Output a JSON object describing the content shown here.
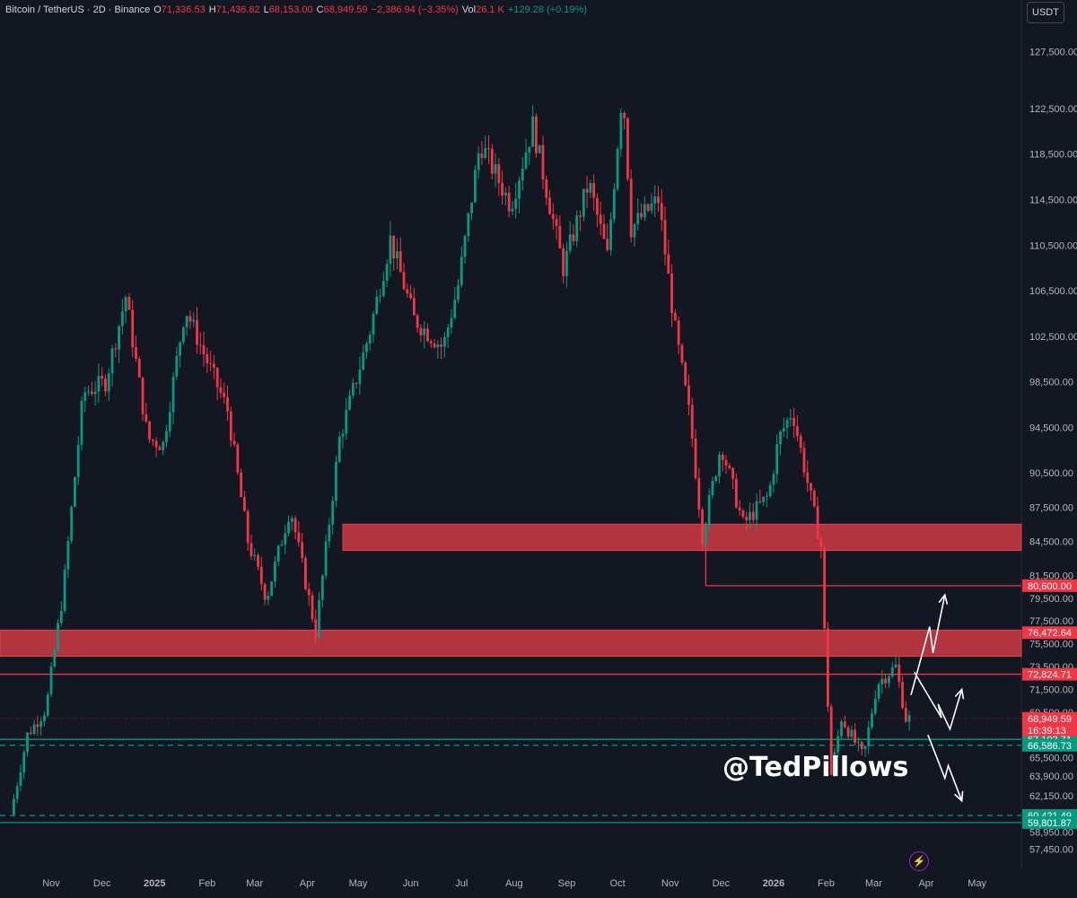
{
  "header": {
    "symbol": "Bitcoin / TetherUS · 2D · Binance",
    "open_label": "O",
    "open": "71,336.53",
    "high_label": "H",
    "high": "71,436.82",
    "low_label": "L",
    "low": "68,153.00",
    "close_label": "C",
    "close": "68,949.59",
    "change": "−2,386.94 (−3.35%)",
    "vol_label": "Vol",
    "vol": "26.1 K",
    "vol_change": "+129.28 (+0.19%)"
  },
  "currency_badge": "USDT",
  "watermark": "@TedPillows",
  "icons": {
    "alert": "lightning-bolt-icon"
  },
  "colors": {
    "background": "#131722",
    "up": "#089981",
    "down": "#f23645",
    "zone": "#b2343f",
    "arrow": "#ffffff",
    "axis_text": "#b2b5be"
  },
  "chart_data": {
    "type": "candlestick",
    "timeframe": "2D",
    "ylim": [
      56800,
      131000
    ],
    "y_ticks": [
      "127,500.00",
      "122,500.00",
      "118,500.00",
      "114,500.00",
      "110,500.00",
      "106,500.00",
      "102,500.00",
      "98,500.00",
      "94,500.00",
      "90,500.00",
      "87,500.00",
      "84,500.00",
      "81,500.00",
      "79,500.00",
      "77,500.00",
      "75,500.00",
      "73,500.00",
      "71,500.00",
      "69,500.00",
      "65,500.00",
      "63,900.00",
      "62,150.00",
      "58,950.00",
      "57,450.00"
    ],
    "x_ticks": [
      "Nov",
      "Dec",
      "2025",
      "Feb",
      "Mar",
      "Apr",
      "May",
      "Jun",
      "Jul",
      "Aug",
      "Sep",
      "Oct",
      "Nov",
      "Dec",
      "2026",
      "Feb",
      "Mar",
      "Apr",
      "May"
    ],
    "x_tick_dates": [
      "2024-11-01",
      "2024-12-01",
      "2025-01-01",
      "2025-02-01",
      "2025-03-01",
      "2025-04-01",
      "2025-05-01",
      "2025-06-01",
      "2025-07-01",
      "2025-08-01",
      "2025-09-01",
      "2025-10-01",
      "2025-11-01",
      "2025-12-01",
      "2026-01-01",
      "2026-02-01",
      "2026-03-01",
      "2026-04-01",
      "2026-05-01"
    ],
    "path_anchors": [
      [
        "2024-10-10",
        60500
      ],
      [
        "2024-10-20",
        67500
      ],
      [
        "2024-10-31",
        69800
      ],
      [
        "2024-11-10",
        80000
      ],
      [
        "2024-11-22",
        97500
      ],
      [
        "2024-12-05",
        98500
      ],
      [
        "2024-12-17",
        106000
      ],
      [
        "2024-12-30",
        93500
      ],
      [
        "2025-01-08",
        93000
      ],
      [
        "2025-01-21",
        105000
      ],
      [
        "2025-02-01",
        101000
      ],
      [
        "2025-02-15",
        96000
      ],
      [
        "2025-02-27",
        84500
      ],
      [
        "2025-03-10",
        79500
      ],
      [
        "2025-03-24",
        87500
      ],
      [
        "2025-04-08",
        76500
      ],
      [
        "2025-04-22",
        93500
      ],
      [
        "2025-05-10",
        103000
      ],
      [
        "2025-05-22",
        111000
      ],
      [
        "2025-06-05",
        104000
      ],
      [
        "2025-06-22",
        101500
      ],
      [
        "2025-07-01",
        107000
      ],
      [
        "2025-07-14",
        119500
      ],
      [
        "2025-08-01",
        114000
      ],
      [
        "2025-08-14",
        121000
      ],
      [
        "2025-09-01",
        108500
      ],
      [
        "2025-09-16",
        116000
      ],
      [
        "2025-09-27",
        109500
      ],
      [
        "2025-10-06",
        124500
      ],
      [
        "2025-10-11",
        112000
      ],
      [
        "2025-10-27",
        114500
      ],
      [
        "2025-11-06",
        103000
      ],
      [
        "2025-11-15",
        95000
      ],
      [
        "2025-11-22",
        85000
      ],
      [
        "2025-12-03",
        93000
      ],
      [
        "2025-12-16",
        86000
      ],
      [
        "2025-12-31",
        88500
      ],
      [
        "2026-01-06",
        93500
      ],
      [
        "2026-01-14",
        96000
      ],
      [
        "2026-01-19",
        92500
      ],
      [
        "2026-01-31",
        84000
      ],
      [
        "2026-02-02",
        76500
      ],
      [
        "2026-02-06",
        64000
      ],
      [
        "2026-02-12",
        69000
      ],
      [
        "2026-02-25",
        65500
      ],
      [
        "2026-03-05",
        72000
      ],
      [
        "2026-03-16",
        73500
      ],
      [
        "2026-03-22",
        68950
      ]
    ],
    "zones": [
      {
        "from": "2025-04-22",
        "low": 83700,
        "high": 86000
      },
      {
        "from": "2024-10-01",
        "low": 74400,
        "high": 76700
      }
    ],
    "price_lines": [
      {
        "value": 80600.0,
        "label": "80,600.00",
        "style": "solid",
        "color": "#f23645",
        "from": "2025-11-22"
      },
      {
        "value": 76472.64,
        "label": "76,472.64",
        "style": "none",
        "color": "#f23645"
      },
      {
        "value": 72824.71,
        "label": "72,824.71",
        "style": "solid",
        "color": "#f23645"
      },
      {
        "value": 67103.71,
        "label": "67,103.71",
        "style": "solid",
        "color": "#089981"
      },
      {
        "value": 66586.73,
        "label": "66,586.73",
        "style": "dashed",
        "color": "#089981"
      },
      {
        "value": 60421.49,
        "label": "60,421.49",
        "style": "dashed",
        "color": "#089981"
      },
      {
        "value": 59801.87,
        "label": "59,801.87",
        "style": "solid",
        "color": "#089981"
      }
    ],
    "current_price": {
      "value": 68949.59,
      "label": "68,949.59",
      "countdown": "16:39:13"
    },
    "projections": [
      [
        [
          "2026-03-23",
          71000
        ],
        [
          "2026-04-03",
          77000
        ],
        [
          "2026-04-05",
          74700
        ],
        [
          "2026-04-12",
          79800
        ]
      ],
      [
        [
          "2026-03-25",
          73000
        ],
        [
          "2026-04-10",
          69000
        ],
        [
          "2026-04-08",
          70200
        ],
        [
          "2026-04-15",
          68000
        ],
        [
          "2026-04-22",
          71500
        ]
      ],
      [
        [
          "2026-04-02",
          67500
        ],
        [
          "2026-04-12",
          63700
        ],
        [
          "2026-04-14",
          64800
        ],
        [
          "2026-04-22",
          61700
        ]
      ]
    ]
  }
}
